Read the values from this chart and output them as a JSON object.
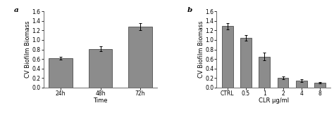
{
  "chart_a": {
    "label": "a",
    "categories": [
      "24h",
      "48h",
      "72h"
    ],
    "values": [
      0.61,
      0.81,
      1.28
    ],
    "errors": [
      0.03,
      0.05,
      0.07
    ],
    "xlabel": "Time",
    "ylabel": "CV Biofilm Biomass",
    "ylim": [
      0.0,
      1.6
    ],
    "yticks": [
      0.0,
      0.2,
      0.4,
      0.6,
      0.8,
      1.0,
      1.2,
      1.4,
      1.6
    ],
    "bar_color": "#8c8c8c",
    "bar_edge_color": "#333333"
  },
  "chart_b": {
    "label": "b",
    "categories": [
      "CTRL",
      "0.5",
      "1",
      "2",
      "4",
      "8"
    ],
    "values": [
      1.29,
      1.05,
      0.65,
      0.2,
      0.14,
      0.1
    ],
    "errors": [
      0.07,
      0.06,
      0.08,
      0.03,
      0.03,
      0.02
    ],
    "xlabel": "CLR μg/ml",
    "ylabel": "CV Biofilm Biomass",
    "ylim": [
      0.0,
      1.6
    ],
    "yticks": [
      0.0,
      0.2,
      0.4,
      0.6,
      0.8,
      1.0,
      1.2,
      1.4,
      1.6
    ],
    "bar_color": "#8c8c8c",
    "bar_edge_color": "#333333"
  },
  "background_color": "#ffffff",
  "tick_fontsize": 5.5,
  "label_fontsize": 6.0,
  "panel_label_fontsize": 7.5
}
